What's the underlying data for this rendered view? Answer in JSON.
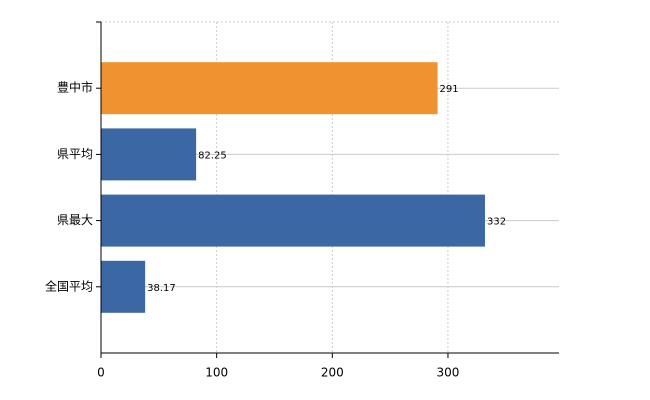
{
  "chart_data": {
    "type": "bar",
    "orientation": "horizontal",
    "categories": [
      "豊中市",
      "県平均",
      "県最大",
      "全国平均"
    ],
    "values": [
      291,
      82.25,
      332,
      38.17
    ],
    "colors": [
      "#f0922f",
      "#3b68a4",
      "#3b68a4",
      "#3b68a4"
    ],
    "xlim": [
      0,
      396
    ],
    "xticks": [
      0,
      100,
      200,
      300
    ],
    "grid": true
  }
}
